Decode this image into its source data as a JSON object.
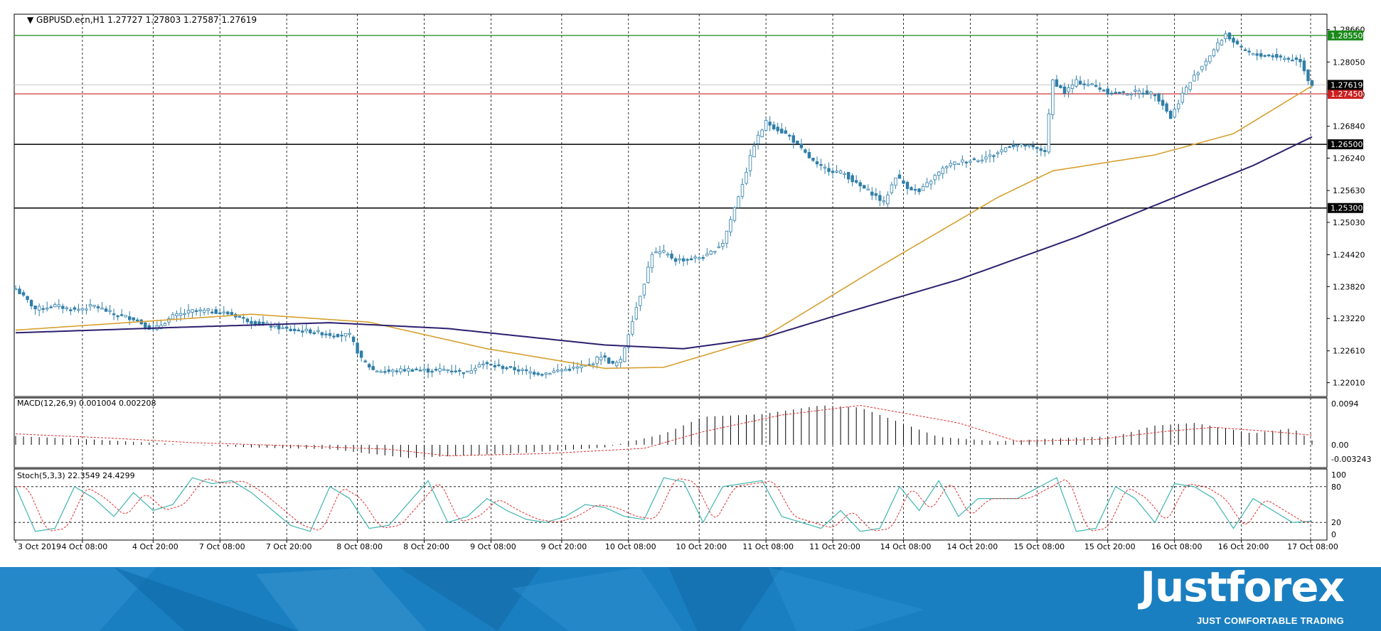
{
  "brand": {
    "name": "Justforex",
    "slogan": "JUST COMFORTABLE TRADING"
  },
  "colors": {
    "bull": "#2f7ea8",
    "ma_fast": "#d6a030",
    "ma_slow": "#2e1f6e",
    "macd_signal": "#e03030",
    "stoch_main": "#3fb5b0",
    "stoch_signal": "#e03030",
    "level_green": "#1a8a1a",
    "level_red": "#cc2020",
    "level_black": "#000000",
    "footer": "#1a7fc1"
  },
  "chart_data": [
    {
      "type": "candlestick",
      "symbol": "GBPUSD.ecn,H1",
      "ohlc_label": "1.27727 1.27803 1.27587 1.27619",
      "ylim": [
        1.2175,
        1.2895
      ],
      "price_ticks": [
        "1.28660",
        "1.28050",
        "1.27440",
        "1.26840",
        "1.26240",
        "1.25630",
        "1.25030",
        "1.24420",
        "1.23820",
        "1.23220",
        "1.22610",
        "1.22010"
      ],
      "x_labels": [
        "3 Oct 2019",
        "4 Oct 08:00",
        "4 Oct 20:00",
        "7 Oct 08:00",
        "7 Oct 20:00",
        "8 Oct 08:00",
        "8 Oct 20:00",
        "9 Oct 08:00",
        "9 Oct 20:00",
        "10 Oct 08:00",
        "10 Oct 20:00",
        "11 Oct 08:00",
        "11 Oct 20:00",
        "14 Oct 08:00",
        "14 Oct 20:00",
        "15 Oct 08:00",
        "15 Oct 20:00",
        "16 Oct 08:00",
        "16 Oct 20:00",
        "17 Oct 08:00"
      ],
      "levels": [
        {
          "value": 1.2855,
          "label": "1.28550",
          "color": "green"
        },
        {
          "value": 1.2745,
          "label": "1.27450",
          "color": "red"
        },
        {
          "value": 1.265,
          "label": "1.26500",
          "color": "black"
        },
        {
          "value": 1.253,
          "label": "1.25300",
          "color": "black"
        }
      ],
      "current_price": {
        "value": 1.27619,
        "label": "1.27619"
      },
      "close_anchors": [
        [
          0,
          1.2378
        ],
        [
          5,
          1.234
        ],
        [
          10,
          1.2346
        ],
        [
          15,
          1.2338
        ],
        [
          20,
          1.2346
        ],
        [
          25,
          1.233
        ],
        [
          30,
          1.2322
        ],
        [
          35,
          1.23
        ],
        [
          40,
          1.2326
        ],
        [
          45,
          1.2336
        ],
        [
          50,
          1.2336
        ],
        [
          55,
          1.233
        ],
        [
          60,
          1.2316
        ],
        [
          65,
          1.2308
        ],
        [
          70,
          1.23
        ],
        [
          75,
          1.2298
        ],
        [
          80,
          1.2292
        ],
        [
          85,
          1.229
        ],
        [
          88,
          1.2245
        ],
        [
          91,
          1.2225
        ],
        [
          95,
          1.2222
        ],
        [
          100,
          1.2226
        ],
        [
          105,
          1.2224
        ],
        [
          110,
          1.2226
        ],
        [
          115,
          1.222
        ],
        [
          118,
          1.2238
        ],
        [
          122,
          1.2232
        ],
        [
          126,
          1.2228
        ],
        [
          130,
          1.2222
        ],
        [
          134,
          1.2218
        ],
        [
          138,
          1.2224
        ],
        [
          142,
          1.2228
        ],
        [
          146,
          1.2234
        ],
        [
          149,
          1.2252
        ],
        [
          152,
          1.2235
        ],
        [
          154,
          1.2242
        ],
        [
          157,
          1.232
        ],
        [
          160,
          1.239
        ],
        [
          162,
          1.2445
        ],
        [
          165,
          1.2446
        ],
        [
          168,
          1.2432
        ],
        [
          172,
          1.2434
        ],
        [
          176,
          1.244
        ],
        [
          180,
          1.2465
        ],
        [
          183,
          1.253
        ],
        [
          186,
          1.26
        ],
        [
          188,
          1.265
        ],
        [
          191,
          1.2692
        ],
        [
          194,
          1.2678
        ],
        [
          197,
          1.2665
        ],
        [
          200,
          1.264
        ],
        [
          204,
          1.261
        ],
        [
          208,
          1.26
        ],
        [
          211,
          1.2595
        ],
        [
          214,
          1.2575
        ],
        [
          218,
          1.2558
        ],
        [
          221,
          1.254
        ],
        [
          224,
          1.259
        ],
        [
          227,
          1.257
        ],
        [
          230,
          1.256
        ],
        [
          234,
          1.259
        ],
        [
          237,
          1.261
        ],
        [
          241,
          1.2618
        ],
        [
          245,
          1.2622
        ],
        [
          249,
          1.263
        ],
        [
          253,
          1.2648
        ],
        [
          257,
          1.2648
        ],
        [
          260,
          1.264
        ],
        [
          262,
          1.2638
        ],
        [
          264,
          1.277
        ],
        [
          267,
          1.2748
        ],
        [
          270,
          1.2768
        ],
        [
          274,
          1.2762
        ],
        [
          278,
          1.2748
        ],
        [
          282,
          1.2746
        ],
        [
          286,
          1.2749
        ],
        [
          290,
          1.2745
        ],
        [
          292,
          1.2725
        ],
        [
          294,
          1.27
        ],
        [
          297,
          1.2745
        ],
        [
          300,
          1.2778
        ],
        [
          302,
          1.2798
        ],
        [
          306,
          1.2838
        ],
        [
          308,
          1.2858
        ],
        [
          311,
          1.2835
        ],
        [
          315,
          1.2818
        ],
        [
          319,
          1.2818
        ],
        [
          323,
          1.2812
        ],
        [
          327,
          1.2808
        ],
        [
          329,
          1.2772
        ],
        [
          330,
          1.2762
        ]
      ],
      "ma_fast_anchors": [
        [
          0,
          1.23
        ],
        [
          30,
          1.2315
        ],
        [
          60,
          1.233
        ],
        [
          90,
          1.2315
        ],
        [
          120,
          1.2265
        ],
        [
          150,
          1.2228
        ],
        [
          165,
          1.223
        ],
        [
          190,
          1.2285
        ],
        [
          220,
          1.242
        ],
        [
          250,
          1.255
        ],
        [
          264,
          1.26
        ],
        [
          290,
          1.263
        ],
        [
          310,
          1.267
        ],
        [
          330,
          1.276
        ]
      ],
      "ma_slow_anchors": [
        [
          0,
          1.2295
        ],
        [
          40,
          1.2305
        ],
        [
          80,
          1.2314
        ],
        [
          110,
          1.2303
        ],
        [
          150,
          1.2272
        ],
        [
          170,
          1.2265
        ],
        [
          190,
          1.2285
        ],
        [
          210,
          1.233
        ],
        [
          240,
          1.2395
        ],
        [
          270,
          1.2475
        ],
        [
          300,
          1.2565
        ],
        [
          315,
          1.261
        ],
        [
          330,
          1.2664
        ]
      ]
    },
    {
      "type": "histogram",
      "name": "MACD(12,26,9) 0.001004 0.002208",
      "ticks": [
        "0.0094",
        "0.00",
        "-0.003243"
      ],
      "ylim": [
        -0.00324,
        0.0094
      ],
      "values_anchors": [
        [
          0,
          0.002
        ],
        [
          20,
          0.0012
        ],
        [
          40,
          0.0002
        ],
        [
          60,
          -0.0006
        ],
        [
          80,
          -0.001
        ],
        [
          100,
          -0.003
        ],
        [
          130,
          -0.0018
        ],
        [
          150,
          -0.0006
        ],
        [
          165,
          0.0025
        ],
        [
          175,
          0.0064
        ],
        [
          190,
          0.007
        ],
        [
          205,
          0.009
        ],
        [
          215,
          0.0085
        ],
        [
          235,
          0.0018
        ],
        [
          250,
          0.0008
        ],
        [
          265,
          0.0015
        ],
        [
          280,
          0.002
        ],
        [
          290,
          0.0044
        ],
        [
          300,
          0.005
        ],
        [
          315,
          0.0026
        ],
        [
          325,
          0.0038
        ],
        [
          330,
          0.001
        ]
      ],
      "signal_anchors": [
        [
          0,
          0.0025
        ],
        [
          25,
          0.0015
        ],
        [
          45,
          0.0005
        ],
        [
          70,
          -0.0002
        ],
        [
          95,
          -0.001
        ],
        [
          110,
          -0.0025
        ],
        [
          135,
          -0.002
        ],
        [
          160,
          -0.0008
        ],
        [
          175,
          0.003
        ],
        [
          195,
          0.0068
        ],
        [
          215,
          0.009
        ],
        [
          240,
          0.005
        ],
        [
          255,
          0.0008
        ],
        [
          275,
          0.0012
        ],
        [
          292,
          0.003
        ],
        [
          305,
          0.004
        ],
        [
          320,
          0.003
        ],
        [
          330,
          0.0022
        ]
      ]
    },
    {
      "type": "line",
      "name": "Stoch(5,3,3) 22.3549 24.4299",
      "ticks": [
        "100",
        "80",
        "20",
        "0"
      ],
      "ylim": [
        0,
        100
      ],
      "levels": [
        80,
        20
      ],
      "main_anchors": [
        [
          0,
          80
        ],
        [
          5,
          5
        ],
        [
          10,
          10
        ],
        [
          15,
          80
        ],
        [
          20,
          60
        ],
        [
          25,
          30
        ],
        [
          30,
          70
        ],
        [
          35,
          40
        ],
        [
          40,
          50
        ],
        [
          45,
          95
        ],
        [
          50,
          85
        ],
        [
          55,
          90
        ],
        [
          60,
          70
        ],
        [
          70,
          15
        ],
        [
          75,
          5
        ],
        [
          80,
          80
        ],
        [
          85,
          60
        ],
        [
          90,
          10
        ],
        [
          95,
          15
        ],
        [
          105,
          90
        ],
        [
          110,
          20
        ],
        [
          115,
          30
        ],
        [
          120,
          60
        ],
        [
          125,
          40
        ],
        [
          130,
          25
        ],
        [
          135,
          20
        ],
        [
          140,
          30
        ],
        [
          145,
          50
        ],
        [
          150,
          45
        ],
        [
          155,
          30
        ],
        [
          160,
          25
        ],
        [
          165,
          95
        ],
        [
          170,
          88
        ],
        [
          175,
          20
        ],
        [
          180,
          80
        ],
        [
          190,
          90
        ],
        [
          195,
          30
        ],
        [
          205,
          10
        ],
        [
          210,
          40
        ],
        [
          215,
          5
        ],
        [
          220,
          10
        ],
        [
          225,
          80
        ],
        [
          230,
          40
        ],
        [
          235,
          90
        ],
        [
          240,
          30
        ],
        [
          245,
          60
        ],
        [
          255,
          60
        ],
        [
          265,
          95
        ],
        [
          270,
          5
        ],
        [
          275,
          10
        ],
        [
          280,
          80
        ],
        [
          285,
          60
        ],
        [
          290,
          20
        ],
        [
          295,
          85
        ],
        [
          300,
          80
        ],
        [
          305,
          60
        ],
        [
          310,
          10
        ],
        [
          315,
          60
        ],
        [
          320,
          40
        ],
        [
          325,
          20
        ],
        [
          330,
          22
        ]
      ]
    }
  ]
}
